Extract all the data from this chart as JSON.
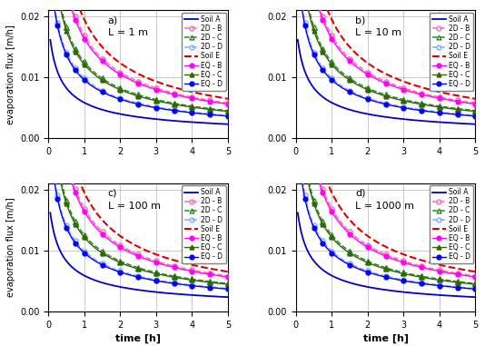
{
  "panels": [
    {
      "label": "a)",
      "L": "L = 1 m"
    },
    {
      "label": "b)",
      "L": "L = 10 m"
    },
    {
      "label": "c)",
      "L": "L = 100 m"
    },
    {
      "label": "d)",
      "L": "L = 1000 m"
    }
  ],
  "xlim": [
    0,
    5
  ],
  "ylim": [
    0.0,
    0.021
  ],
  "yticks": [
    0.0,
    0.01,
    0.02
  ],
  "xticks": [
    0,
    1,
    2,
    3,
    4,
    5
  ],
  "xlabel": "time [h]",
  "ylabel": "evaporation flux [m/h]",
  "legend_entries": [
    {
      "label": "Soil A",
      "color": "#0000cc",
      "ls": "-",
      "marker": "none",
      "mfc": "none",
      "lw": 1.3
    },
    {
      "label": "2D - B",
      "color": "#ff69b4",
      "ls": "--",
      "marker": "o",
      "mfc": "none",
      "lw": 1.1
    },
    {
      "label": "2D - C",
      "color": "#228b22",
      "ls": "--",
      "marker": "^",
      "mfc": "none",
      "lw": 1.1
    },
    {
      "label": "2D - D",
      "color": "#88aaff",
      "ls": "--",
      "marker": "o",
      "mfc": "none",
      "lw": 1.1
    },
    {
      "label": "Soil E",
      "color": "#dd0000",
      "ls": "--",
      "marker": "none",
      "mfc": "none",
      "lw": 1.5
    },
    {
      "label": "EQ - B",
      "color": "#ff00ff",
      "ls": "-",
      "marker": "o",
      "mfc": "#ff00ff",
      "lw": 1.0
    },
    {
      "label": "EQ - C",
      "color": "#336600",
      "ls": "-",
      "marker": "^",
      "mfc": "#336600",
      "lw": 1.0
    },
    {
      "label": "EQ - D",
      "color": "#0000ff",
      "ls": "-",
      "marker": "o",
      "mfc": "#0000ff",
      "lw": 1.0
    }
  ]
}
